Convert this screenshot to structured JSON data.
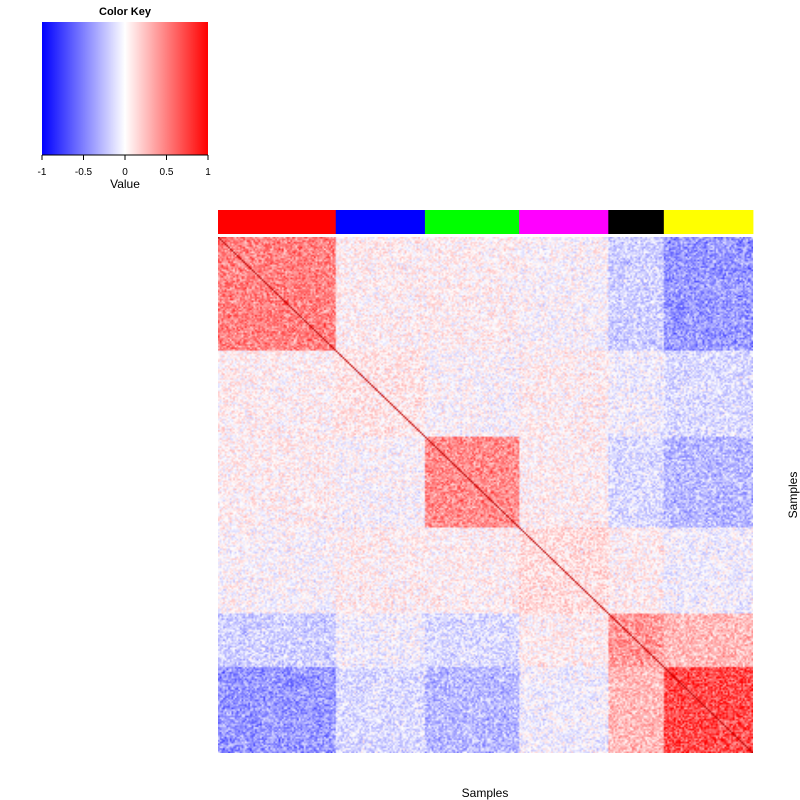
{
  "chart_data": {
    "type": "heatmap",
    "title": "",
    "xlabel": "Samples",
    "ylabel": "Samples",
    "matrix": "symmetric sample-sample correlation matrix, diagonal = 1",
    "color_key": {
      "title": "Color Key",
      "xlabel": "Value",
      "ticks": [
        "-1",
        "-0.5",
        "0",
        "0.5",
        "1"
      ],
      "range": [
        -1,
        1
      ],
      "colors": {
        "low": "#0000ff",
        "mid": "#ffffff",
        "high": "#ff0000"
      }
    },
    "groups": [
      {
        "name": "red group",
        "color": "#ff0000",
        "size": 70
      },
      {
        "name": "blue group",
        "color": "#0000ff",
        "size": 53
      },
      {
        "name": "green group",
        "color": "#00ff00",
        "size": 56
      },
      {
        "name": "magenta group",
        "color": "#ff00ff",
        "size": 53
      },
      {
        "name": "black group",
        "color": "#000000",
        "size": 33
      },
      {
        "name": "yellow group",
        "color": "#ffff00",
        "size": 53
      }
    ],
    "n_samples": 318
  }
}
